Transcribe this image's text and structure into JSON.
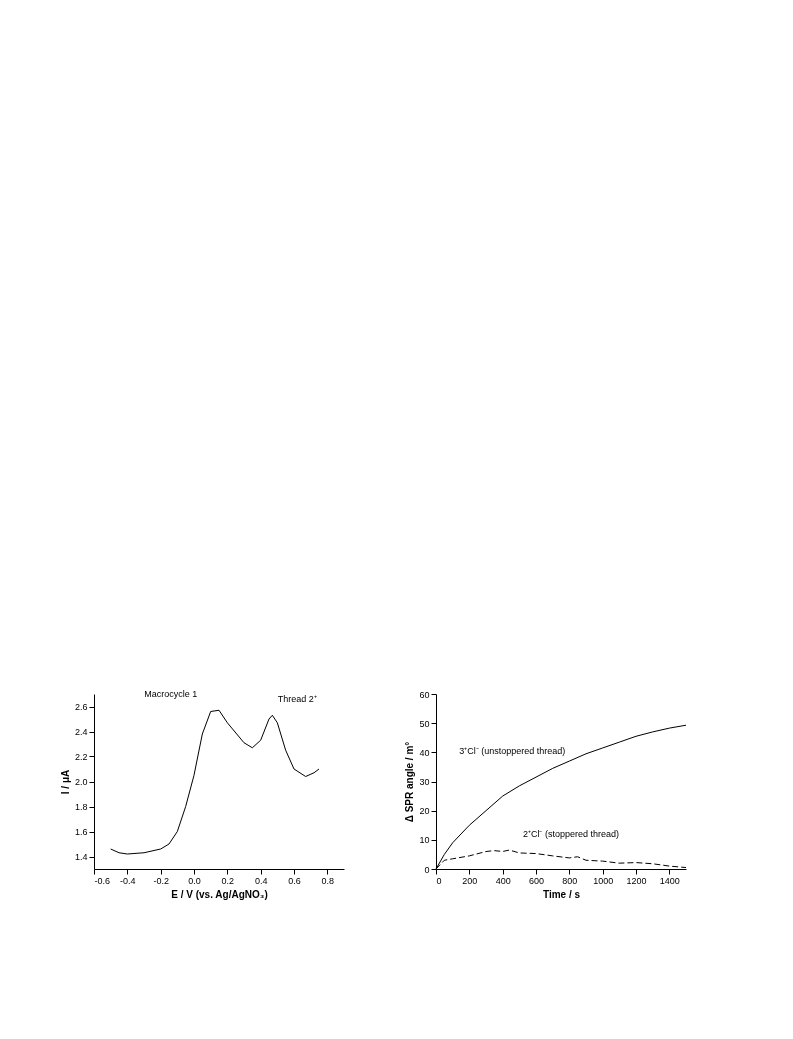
{
  "chart_data": [
    {
      "type": "line",
      "xlabel": "E / V (vs. Ag/AgNO₃)",
      "ylabel": "I / μA",
      "x": [
        -0.5,
        -0.45,
        -0.4,
        -0.3,
        -0.2,
        -0.15,
        -0.1,
        -0.05,
        0,
        0.05,
        0.1,
        0.15,
        0.2,
        0.3,
        0.35,
        0.4,
        0.45,
        0.47,
        0.5,
        0.55,
        0.6,
        0.67,
        0.72,
        0.75
      ],
      "series": [
        {
          "color": "#000000",
          "values": [
            1.46,
            1.43,
            1.42,
            1.43,
            1.46,
            1.5,
            1.6,
            1.8,
            2.05,
            2.38,
            2.56,
            2.57,
            2.47,
            2.31,
            2.27,
            2.33,
            2.5,
            2.53,
            2.47,
            2.25,
            2.1,
            2.04,
            2.07,
            2.1
          ]
        }
      ],
      "xlim": [
        -0.6,
        0.9
      ],
      "xticks": [
        -0.6,
        -0.4,
        -0.2,
        {
          "value": 0,
          "label": "0.0"
        },
        0.2,
        0.4,
        0.6,
        0.8
      ],
      "ylim": [
        1.3,
        2.7
      ],
      "yticks": [
        1.4,
        1.6,
        1.8,
        {
          "value": 2,
          "label": "2.0"
        },
        2.2,
        2.4,
        2.6
      ],
      "annotations": [
        {
          "text": "Macrocycle 1",
          "x": 0.1,
          "y": 2.57
        },
        {
          "text": "Thread 2⁺",
          "x": 0.47,
          "y": 2.53
        }
      ],
      "grid": false,
      "legend": false,
      "line_style": "solid",
      "marker": "none"
    },
    {
      "type": "line",
      "xlabel": "Time / s",
      "ylabel": "Δ SPR angle / m°",
      "series": [
        {
          "name": "3⁺Cl⁻ (unstoppered thread)",
          "color": "#000000",
          "line_style": "solid",
          "x": [
            0,
            50,
            100,
            200,
            300,
            400,
            500,
            600,
            700,
            800,
            900,
            1000,
            1100,
            1200,
            1300,
            1400,
            1500
          ],
          "values": [
            0,
            5,
            9,
            15,
            20,
            25,
            28.5,
            31.5,
            34.5,
            37,
            39.5,
            41.5,
            43.5,
            45.5,
            47,
            48.3,
            49.3
          ]
        },
        {
          "name": "2⁺Cl⁻ (stoppered thread)",
          "color": "#000000",
          "line_style": "dashed",
          "x": [
            0,
            50,
            100,
            200,
            300,
            350,
            400,
            440,
            500,
            600,
            700,
            800,
            850,
            900,
            1000,
            1100,
            1200,
            1300,
            1400,
            1500
          ],
          "values": [
            0,
            3,
            3.5,
            4.5,
            6,
            6.3,
            6,
            6.5,
            5.5,
            5.3,
            4.5,
            3.8,
            4.2,
            3,
            2.7,
            2,
            2.2,
            1.8,
            1,
            0.5
          ]
        }
      ],
      "xlim": [
        0,
        1500
      ],
      "xticks": [
        0,
        200,
        400,
        600,
        800,
        1000,
        1200,
        1400
      ],
      "ylim": [
        0,
        60
      ],
      "yticks": [
        0,
        10,
        20,
        30,
        40,
        50,
        60
      ],
      "grid": false,
      "legend": false,
      "marker": "none"
    }
  ]
}
